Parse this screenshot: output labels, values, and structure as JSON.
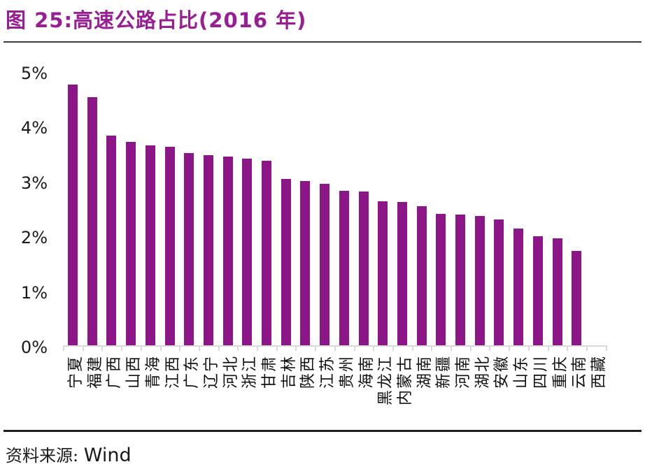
{
  "chart_data": {
    "type": "bar",
    "title": "图 25:高速公路占比(2016 年)",
    "categories": [
      "宁夏",
      "福建",
      "广西",
      "山西",
      "青海",
      "江西",
      "广东",
      "辽宁",
      "河北",
      "浙江",
      "甘肃",
      "吉林",
      "陕西",
      "江苏",
      "贵州",
      "海南",
      "黑龙江",
      "内蒙古",
      "湖南",
      "新疆",
      "河南",
      "湖北",
      "安徽",
      "山东",
      "四川",
      "重庆",
      "云南",
      "西藏"
    ],
    "values": [
      4.76,
      4.53,
      3.83,
      3.72,
      3.66,
      3.63,
      3.52,
      3.48,
      3.45,
      3.41,
      3.37,
      3.04,
      3.0,
      2.95,
      2.83,
      2.82,
      2.64,
      2.62,
      2.55,
      2.41,
      2.4,
      2.37,
      2.3,
      2.14,
      2.0,
      1.96,
      1.73,
      0
    ],
    "unit": "%",
    "xlabel": "",
    "ylabel": "",
    "ylim": [
      0,
      5
    ],
    "y_ticks": [
      "0%",
      "1%",
      "2%",
      "3%",
      "4%",
      "5%"
    ],
    "grid": false,
    "legend": null,
    "legend_position": "none"
  },
  "colors": {
    "bar": "#8C1588",
    "title": "#9A1E93",
    "axis": "#D9D9D9",
    "divider_top": "#3C3C3C",
    "divider_bottom": "#1F1F1F"
  },
  "footer": {
    "source_label": "资料来源:",
    "source_value": "Wind"
  }
}
